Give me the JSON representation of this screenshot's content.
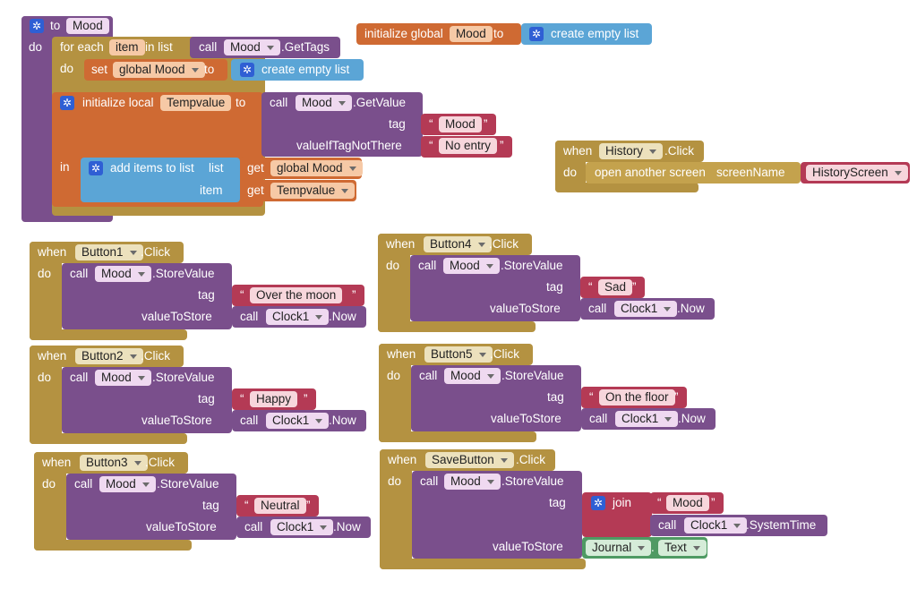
{
  "procedure": {
    "to_kw": "to",
    "name": "Mood",
    "do_kw": "do",
    "foreach_kw": "for each",
    "item_var": "item",
    "in_list_kw": "in list",
    "call_kw": "call",
    "component": "Mood",
    "get_tags": ".GetTags",
    "inner_do_kw": "do",
    "set_kw": "set",
    "global_mood": "global Mood",
    "to_kw2": "to",
    "create_empty_list": "create empty list",
    "init_local": "initialize local",
    "local_var": "Tempvalue",
    "to_kw3": "to",
    "get_value": ".GetValue",
    "tag_kw": "tag",
    "tag_value": "Mood",
    "value_if_not": "valueIfTagNotThere",
    "default_value": "No entry",
    "in_kw": "in",
    "add_items": "add items to list",
    "list_kw": "list",
    "get_kw": "get",
    "list_var": "global Mood",
    "item_kw": "item",
    "get_kw2": "get",
    "item_var2": "Tempvalue"
  },
  "global_init": {
    "label": "initialize global",
    "var": "Mood",
    "to_kw": "to",
    "value": "create empty list"
  },
  "history": {
    "when_kw": "when",
    "component": "History",
    "event": ".Click",
    "do_kw": "do",
    "action": "open another screen",
    "param": "screenName",
    "screen": "HistoryScreen"
  },
  "button_events": [
    {
      "when_kw": "when",
      "button": "Button1",
      "event": ".Click",
      "do_kw": "do",
      "call_kw": "call",
      "component": "Mood",
      "method": ".StoreValue",
      "tag_kw": "tag",
      "tag": "Over the moon",
      "vts_kw": "valueToStore",
      "call2_kw": "call",
      "clock": "Clock1",
      "now": ".Now"
    },
    {
      "when_kw": "when",
      "button": "Button2",
      "event": ".Click",
      "do_kw": "do",
      "call_kw": "call",
      "component": "Mood",
      "method": ".StoreValue",
      "tag_kw": "tag",
      "tag": "Happy",
      "vts_kw": "valueToStore",
      "call2_kw": "call",
      "clock": "Clock1",
      "now": ".Now"
    },
    {
      "when_kw": "when",
      "button": "Button3",
      "event": ".Click",
      "do_kw": "do",
      "call_kw": "call",
      "component": "Mood",
      "method": ".StoreValue",
      "tag_kw": "tag",
      "tag": "Neutral",
      "vts_kw": "valueToStore",
      "call2_kw": "call",
      "clock": "Clock1",
      "now": ".Now"
    },
    {
      "when_kw": "when",
      "button": "Button4",
      "event": ".Click",
      "do_kw": "do",
      "call_kw": "call",
      "component": "Mood",
      "method": ".StoreValue",
      "tag_kw": "tag",
      "tag": "Sad",
      "vts_kw": "valueToStore",
      "call2_kw": "call",
      "clock": "Clock1",
      "now": ".Now"
    },
    {
      "when_kw": "when",
      "button": "Button5",
      "event": ".Click",
      "do_kw": "do",
      "call_kw": "call",
      "component": "Mood",
      "method": ".StoreValue",
      "tag_kw": "tag",
      "tag": "On the floor",
      "vts_kw": "valueToStore",
      "call2_kw": "call",
      "clock": "Clock1",
      "now": ".Now"
    }
  ],
  "save": {
    "when_kw": "when",
    "button": "SaveButton",
    "event": ".Click",
    "do_kw": "do",
    "call_kw": "call",
    "component": "Mood",
    "method": ".StoreValue",
    "tag_kw": "tag",
    "join_kw": "join",
    "join_text": "Mood",
    "call2_kw": "call",
    "clock": "Clock1",
    "system_time": ".SystemTime",
    "vts_kw": "valueToStore",
    "journal": "Journal",
    "dot": ".",
    "text_prop": "Text"
  },
  "icons": {
    "gear": "gear-icon",
    "dropdown": "chevron-down-icon"
  },
  "colors": {
    "procedure": "#7a4f8c",
    "variable": "#cf6a33",
    "control": "#b49241",
    "list": "#5ba5d6",
    "text": "#b43a55",
    "component_get": "#4f9a63"
  }
}
